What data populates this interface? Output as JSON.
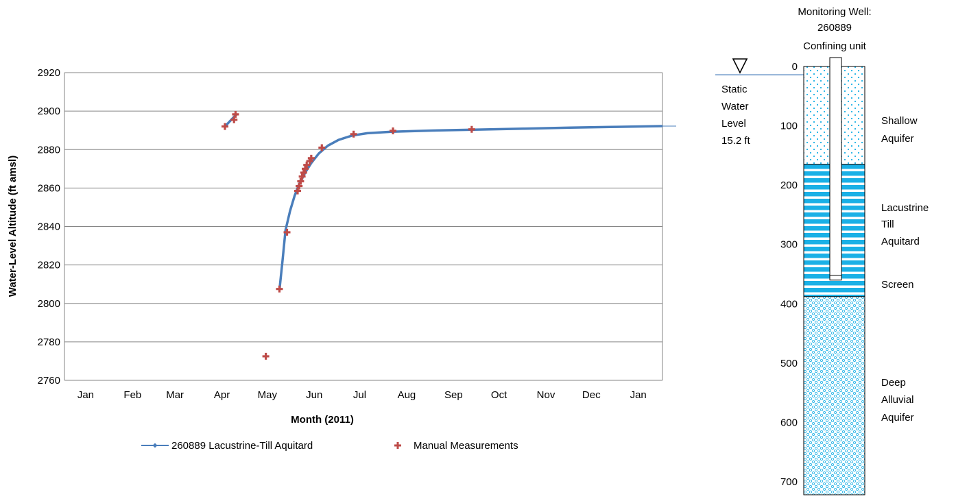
{
  "colors": {
    "series_line": "#4a7ebb",
    "manual_points": "#be4b48",
    "grid": "#868686",
    "aquifer_blue": "#1ab0e6"
  },
  "chart_data": [
    {
      "type": "line",
      "xlabel": "Month (2011)",
      "ylabel": "Water-Level Altitude (ft amsl)",
      "x_ticks": [
        "Jan",
        "Feb",
        "Mar",
        "Apr",
        "May",
        "Jun",
        "Jul",
        "Aug",
        "Sep",
        "Oct",
        "Nov",
        "Dec",
        "Jan"
      ],
      "y_ticks": [
        2760,
        2780,
        2800,
        2820,
        2840,
        2860,
        2880,
        2900,
        2920
      ],
      "xlim": [
        "2011-01-01",
        "2012-01-31"
      ],
      "ylim": [
        2760,
        2920
      ],
      "grid": "horizontal",
      "legend_position": "bottom",
      "series": [
        {
          "name": "260889 Lacustrine-Till Aquitard",
          "marker": "small diamond",
          "segments": [
            [
              [
                "2011-04-17",
                2892
              ],
              [
                "2011-04-20",
                2894.5
              ],
              [
                "2011-04-23",
                2897
              ],
              [
                "2011-04-25",
                2898.5
              ]
            ],
            [
              [
                "2011-05-23",
                2807
              ],
              [
                "2011-05-25",
                2822
              ],
              [
                "2011-05-27",
                2838
              ],
              [
                "2011-05-30",
                2848
              ],
              [
                "2011-06-02",
                2856
              ],
              [
                "2011-06-05",
                2862
              ],
              [
                "2011-06-09",
                2868
              ],
              [
                "2011-06-13",
                2873
              ],
              [
                "2011-06-18",
                2878
              ],
              [
                "2011-06-24",
                2882
              ],
              [
                "2011-07-01",
                2885
              ],
              [
                "2011-07-10",
                2887.3
              ],
              [
                "2011-07-20",
                2888.5
              ],
              [
                "2011-08-05",
                2889.3
              ],
              [
                "2011-09-01",
                2889.9
              ],
              [
                "2011-10-01",
                2890.4
              ],
              [
                "2011-11-01",
                2890.9
              ],
              [
                "2011-12-01",
                2891.4
              ],
              [
                "2012-01-01",
                2891.8
              ],
              [
                "2012-01-31",
                2892.2
              ]
            ]
          ]
        },
        {
          "name": "Manual Measurements",
          "marker": "cross",
          "points": [
            [
              "2011-04-17",
              2892
            ],
            [
              "2011-04-23",
              2895.5
            ],
            [
              "2011-04-24",
              2898.3
            ],
            [
              "2011-05-14",
              2772.5
            ],
            [
              "2011-05-23",
              2807.5
            ],
            [
              "2011-05-28",
              2837
            ],
            [
              "2011-06-04",
              2858.5
            ],
            [
              "2011-06-05",
              2861
            ],
            [
              "2011-06-06",
              2863.5
            ],
            [
              "2011-06-07",
              2866
            ],
            [
              "2011-06-08",
              2868
            ],
            [
              "2011-06-09",
              2870
            ],
            [
              "2011-06-10",
              2872
            ],
            [
              "2011-06-12",
              2874
            ],
            [
              "2011-06-13",
              2875.5
            ],
            [
              "2011-06-20",
              2881
            ],
            [
              "2011-07-11",
              2888
            ],
            [
              "2011-08-06",
              2889.7
            ],
            [
              "2011-09-27",
              2890.5
            ]
          ]
        }
      ]
    },
    {
      "type": "well_diagram",
      "title_lines": [
        "Monitoring Well:",
        "260889",
        "Confining unit"
      ],
      "static_water_level_lines": [
        "Static",
        "Water",
        "Level",
        "15.2 ft"
      ],
      "static_water_level_depth": 15.2,
      "depth_ticks": [
        0,
        100,
        200,
        300,
        400,
        500,
        600,
        700
      ],
      "depth_range": [
        0,
        722
      ],
      "layers": [
        {
          "label_lines": [
            "Shallow",
            "Aquifer"
          ],
          "top": 0,
          "bottom": 165,
          "pattern": "dots"
        },
        {
          "label_lines": [
            "Lacustrine",
            "Till",
            "Aquitard"
          ],
          "top": 165,
          "bottom": 388,
          "pattern": "stripes"
        },
        {
          "label_lines": [
            "Deep",
            "Alluvial",
            "Aquifer"
          ],
          "top": 388,
          "bottom": 722,
          "pattern": "circles"
        }
      ],
      "screen_label": "Screen",
      "screen_depth": [
        352,
        360
      ],
      "casing_bottom_depth": 360
    }
  ]
}
